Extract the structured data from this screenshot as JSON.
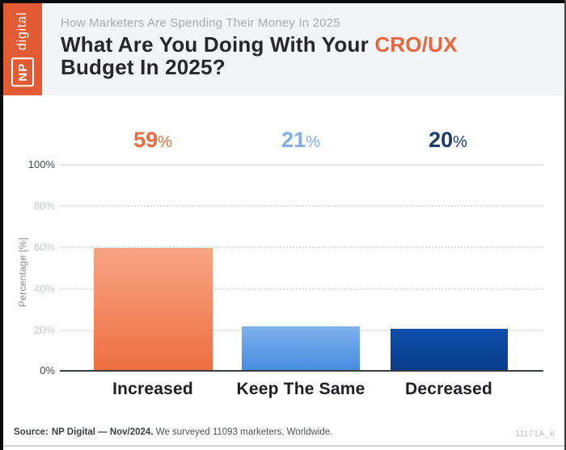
{
  "brand": {
    "logo_np": "NP",
    "logo_digital": "digital"
  },
  "header": {
    "eyebrow": "How Marketers Are Spending Their Money In 2025",
    "title_prefix": "What Are You Doing With Your",
    "title_highlight": "CRO/UX",
    "title_line2": "Budget In 2025?"
  },
  "chart_data": {
    "type": "bar",
    "title": "What Are You Doing With Your CRO/UX Budget In 2025?",
    "categories": [
      "Increased",
      "Keep The Same",
      "Decreased"
    ],
    "values": [
      59,
      21,
      20
    ],
    "value_labels": [
      "59",
      "21",
      "20"
    ],
    "percent_sign": "%",
    "xlabel": "",
    "ylabel": "Percentage [%]",
    "ylim": [
      0,
      100
    ],
    "yticks": [
      "100%",
      "80%",
      "60%",
      "40%",
      "20%",
      "0%"
    ],
    "grid": "horizontal, top line solid, inner lines dotted",
    "legend": "none",
    "bar_colors": [
      {
        "name": "orange-gradient",
        "top": "#F9A585",
        "bottom": "#EE6F41"
      },
      {
        "name": "light-blue-gradient",
        "top": "#7FB1ED",
        "bottom": "#488DE1"
      },
      {
        "name": "navy-gradient",
        "top": "#0D4FAC",
        "bottom": "#0A3C8A"
      }
    ],
    "value_label_colors": [
      "#ED6B3E",
      "#7DAEE9",
      "#1A3A74"
    ]
  },
  "footer": {
    "source_label": "Source:",
    "source_bold": "NP Digital — Nov/2024.",
    "source_text": "We surveyed 11093 marketers, Worldwide.",
    "ref_code": "11171A_K"
  },
  "colors": {
    "brand_orange": "#E25B35",
    "accent_orange": "#E9653E",
    "header_bg": "#F3F4F5",
    "title_text": "#27272A",
    "eyebrow_text": "#A8ABAE",
    "axis_line": "#3A3D40",
    "gridline": "#D9DCDF"
  }
}
